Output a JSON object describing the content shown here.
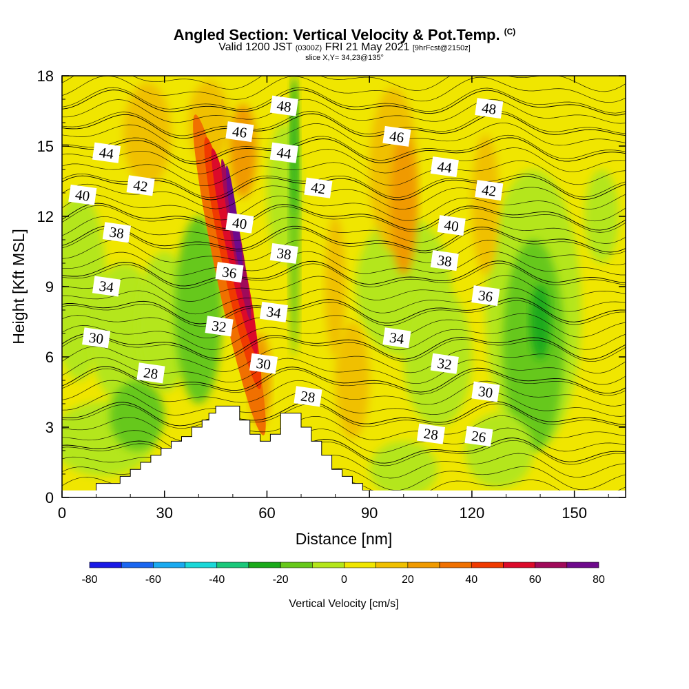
{
  "title": "Angled Section: Vertical Velocity & Pot.Temp.",
  "title_unit": "(C)",
  "subtitle_main": "Valid 1200 JST",
  "subtitle_z": "(0300Z)",
  "subtitle_date": "FRI 21 May 2021",
  "subtitle_fcst": "[9hrFcst@2150z]",
  "slice": "slice X,Y= 34,23@135°",
  "chart_data": {
    "type": "heatmap",
    "xlabel": "Distance [nm]",
    "ylabel": "Height [Kft MSL]",
    "xlim": [
      0,
      165
    ],
    "ylim": [
      0,
      18
    ],
    "xticks": [
      "0",
      "30",
      "60",
      "90",
      "120",
      "150"
    ],
    "yticks": [
      "0",
      "3",
      "6",
      "9",
      "12",
      "15",
      "18"
    ],
    "colorbar": {
      "label": "Vertical Velocity [cm/s]",
      "ticks": [
        "-80",
        "-60",
        "-40",
        "-20",
        "0",
        "20",
        "40",
        "60",
        "80"
      ],
      "colors": [
        "#1a1ae6",
        "#1a66f0",
        "#1aaaf0",
        "#1ad8d8",
        "#1ac87a",
        "#1aaa1a",
        "#66c81a",
        "#b4e61a",
        "#f0e600",
        "#f0c000",
        "#f09a00",
        "#f07000",
        "#f03a00",
        "#dc0a2a",
        "#a00a5a",
        "#6e0a8c"
      ]
    },
    "terrain": [
      [
        10,
        0
      ],
      [
        10,
        0.6
      ],
      [
        17,
        0.6
      ],
      [
        17,
        0.9
      ],
      [
        20,
        0.9
      ],
      [
        20,
        1.2
      ],
      [
        23,
        1.2
      ],
      [
        23,
        1.5
      ],
      [
        26,
        1.5
      ],
      [
        26,
        1.8
      ],
      [
        29,
        1.8
      ],
      [
        29,
        2.1
      ],
      [
        32,
        2.1
      ],
      [
        32,
        2.4
      ],
      [
        35,
        2.4
      ],
      [
        35,
        2.6
      ],
      [
        38,
        2.6
      ],
      [
        38,
        3.0
      ],
      [
        41,
        3.0
      ],
      [
        41,
        3.3
      ],
      [
        43,
        3.3
      ],
      [
        43,
        3.6
      ],
      [
        45,
        3.6
      ],
      [
        45,
        3.9
      ],
      [
        52,
        3.9
      ],
      [
        52,
        3.3
      ],
      [
        55,
        3.3
      ],
      [
        55,
        2.7
      ],
      [
        58,
        2.7
      ],
      [
        58,
        2.4
      ],
      [
        61,
        2.4
      ],
      [
        61,
        2.7
      ],
      [
        64,
        2.7
      ],
      [
        64,
        3.6
      ],
      [
        70,
        3.6
      ],
      [
        70,
        3.0
      ],
      [
        73,
        3.0
      ],
      [
        73,
        2.4
      ],
      [
        76,
        2.4
      ],
      [
        76,
        1.8
      ],
      [
        79,
        1.8
      ],
      [
        79,
        1.2
      ],
      [
        82,
        1.2
      ],
      [
        82,
        0.9
      ],
      [
        85,
        0.9
      ],
      [
        85,
        0.6
      ],
      [
        88,
        0.6
      ],
      [
        88,
        0.3
      ],
      [
        91,
        0.3
      ],
      [
        91,
        0
      ]
    ],
    "theta_contours": [
      {
        "label": "26",
        "y0": 2.0,
        "dy": 0
      },
      {
        "label": "28",
        "y0": 3.5,
        "dy": 0
      },
      {
        "label": "30",
        "y0": 5.0,
        "dy": 0
      },
      {
        "label": "32",
        "y0": 6.5,
        "dy": 0
      },
      {
        "label": "34",
        "y0": 8.0,
        "dy": 0
      },
      {
        "label": "36",
        "y0": 9.5,
        "dy": 0
      },
      {
        "label": "38",
        "y0": 11.0,
        "dy": 0
      },
      {
        "label": "40",
        "y0": 12.0,
        "dy": 0
      },
      {
        "label": "42",
        "y0": 13.3,
        "dy": 0
      },
      {
        "label": "44",
        "y0": 14.8,
        "dy": 0
      },
      {
        "label": "46",
        "y0": 15.8,
        "dy": 0
      },
      {
        "label": "48",
        "y0": 16.8,
        "dy": 0
      }
    ],
    "contour_labels": [
      {
        "text": "48",
        "x": 65,
        "y": 16.7
      },
      {
        "text": "48",
        "x": 125,
        "y": 16.6
      },
      {
        "text": "46",
        "x": 52,
        "y": 15.6
      },
      {
        "text": "46",
        "x": 98,
        "y": 15.4
      },
      {
        "text": "44",
        "x": 13,
        "y": 14.7
      },
      {
        "text": "44",
        "x": 65,
        "y": 14.7
      },
      {
        "text": "44",
        "x": 112,
        "y": 14.1
      },
      {
        "text": "42",
        "x": 23,
        "y": 13.3
      },
      {
        "text": "42",
        "x": 75,
        "y": 13.2
      },
      {
        "text": "42",
        "x": 125,
        "y": 13.1
      },
      {
        "text": "40",
        "x": 6,
        "y": 12.9
      },
      {
        "text": "40",
        "x": 52,
        "y": 11.7
      },
      {
        "text": "40",
        "x": 114,
        "y": 11.6
      },
      {
        "text": "38",
        "x": 16,
        "y": 11.3
      },
      {
        "text": "38",
        "x": 65,
        "y": 10.4
      },
      {
        "text": "38",
        "x": 112,
        "y": 10.1
      },
      {
        "text": "36",
        "x": 49,
        "y": 9.6
      },
      {
        "text": "36",
        "x": 124,
        "y": 8.6
      },
      {
        "text": "34",
        "x": 13,
        "y": 9.0
      },
      {
        "text": "34",
        "x": 62,
        "y": 7.9
      },
      {
        "text": "34",
        "x": 98,
        "y": 6.8
      },
      {
        "text": "32",
        "x": 46,
        "y": 7.3
      },
      {
        "text": "32",
        "x": 112,
        "y": 5.7
      },
      {
        "text": "30",
        "x": 10,
        "y": 6.8
      },
      {
        "text": "30",
        "x": 59,
        "y": 5.7
      },
      {
        "text": "30",
        "x": 124,
        "y": 4.5
      },
      {
        "text": "28",
        "x": 26,
        "y": 5.3
      },
      {
        "text": "28",
        "x": 72,
        "y": 4.3
      },
      {
        "text": "28",
        "x": 108,
        "y": 2.7
      },
      {
        "text": "26",
        "x": 122,
        "y": 2.6
      }
    ]
  }
}
